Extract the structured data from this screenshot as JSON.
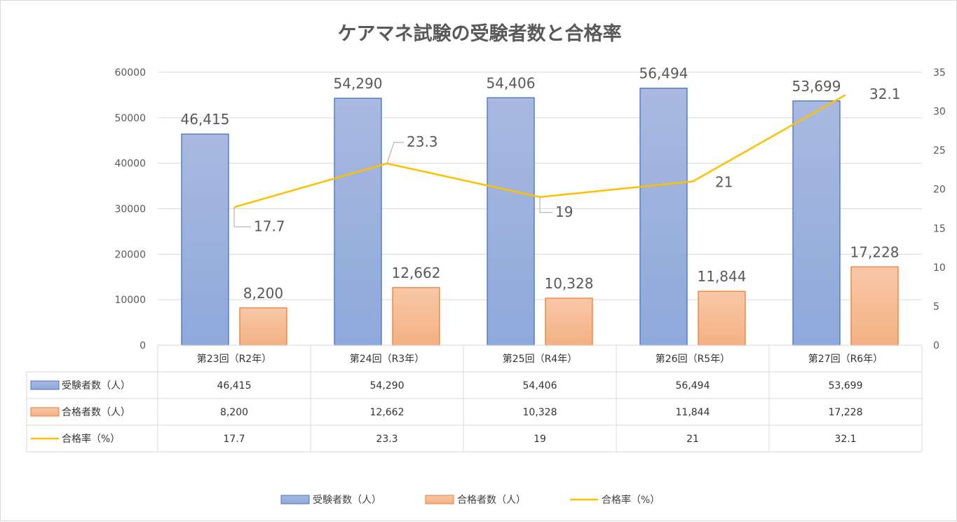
{
  "chart_data": {
    "type": "bar",
    "title": "ケアマネ試験の受験者数と合格率",
    "categories": [
      "第23回（R2年）",
      "第24回（R3年）",
      "第25回（R4年）",
      "第26回（R5年）",
      "第27回（R6年）"
    ],
    "series": [
      {
        "name": "受験者数（人）",
        "type": "bar",
        "axis": "left",
        "color": "#8EA9DB",
        "values": [
          46415,
          54290,
          54406,
          56494,
          53699
        ],
        "labels": [
          "46,415",
          "54,290",
          "54,406",
          "56,494",
          "53,699"
        ]
      },
      {
        "name": "合格者数（人）",
        "type": "bar",
        "axis": "left",
        "color": "#F4B183",
        "values": [
          8200,
          12662,
          10328,
          11844,
          17228
        ],
        "labels": [
          "8,200",
          "12,662",
          "10,328",
          "11,844",
          "17,228"
        ]
      },
      {
        "name": "合格率（%）",
        "type": "line",
        "axis": "right",
        "color": "#FFC000",
        "values": [
          17.7,
          23.3,
          19,
          21,
          32.1
        ],
        "labels": [
          "17.7",
          "23.3",
          "19",
          "21",
          "32.1"
        ]
      }
    ],
    "y_left": {
      "min": 0,
      "max": 60000,
      "step": 10000,
      "ticks": [
        "0",
        "10000",
        "20000",
        "30000",
        "40000",
        "50000",
        "60000"
      ]
    },
    "y_right": {
      "min": 0,
      "max": 35,
      "step": 5,
      "ticks": [
        "0",
        "5",
        "10",
        "15",
        "20",
        "25",
        "30",
        "35"
      ]
    },
    "grid": true,
    "legend": "bottom",
    "data_table": true
  }
}
